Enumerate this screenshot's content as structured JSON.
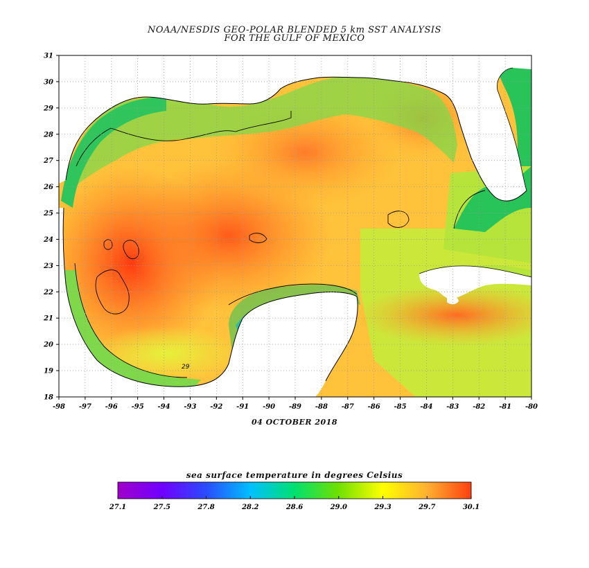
{
  "title": {
    "line1": "NOAA/NESDIS GEO-POLAR BLENDED 5 km SST ANALYSIS",
    "line2": "FOR THE GULF OF MEXICO"
  },
  "date": "04 OCTOBER 2018",
  "map": {
    "lon_range": [
      -98,
      -80
    ],
    "lat_range": [
      18,
      31
    ],
    "grid": "dotted",
    "lon_ticks": [
      "-98",
      "-97",
      "-96",
      "-95",
      "-94",
      "-93",
      "-92",
      "-91",
      "-90",
      "-89",
      "-88",
      "-87",
      "-86",
      "-85",
      "-84",
      "-83",
      "-82",
      "-81",
      "-80"
    ],
    "lat_ticks": [
      "18",
      "19",
      "20",
      "21",
      "22",
      "23",
      "24",
      "25",
      "26",
      "27",
      "28",
      "29",
      "30",
      "31"
    ],
    "contour_label": "29",
    "colors": {
      "land": "#ffffff",
      "sea_warm": "#ff5a1e",
      "sea_mid": "#ffb030",
      "sea_cool": "#b9e62c",
      "coastal": "#22c44a",
      "cold_upwelling": "#6a1ee0",
      "grid": "#9a9a9a"
    }
  },
  "colorbar": {
    "title": "sea surface temperature in degrees Celsius",
    "tick_labels": [
      "27.1",
      "27.5",
      "27.8",
      "28.2",
      "28.6",
      "29.0",
      "29.3",
      "29.7",
      "30.1"
    ],
    "colors": [
      "#a000c8",
      "#7000ff",
      "#2a4cff",
      "#00c0ff",
      "#00e070",
      "#70e000",
      "#ffff00",
      "#ffb030",
      "#ff4010"
    ]
  }
}
